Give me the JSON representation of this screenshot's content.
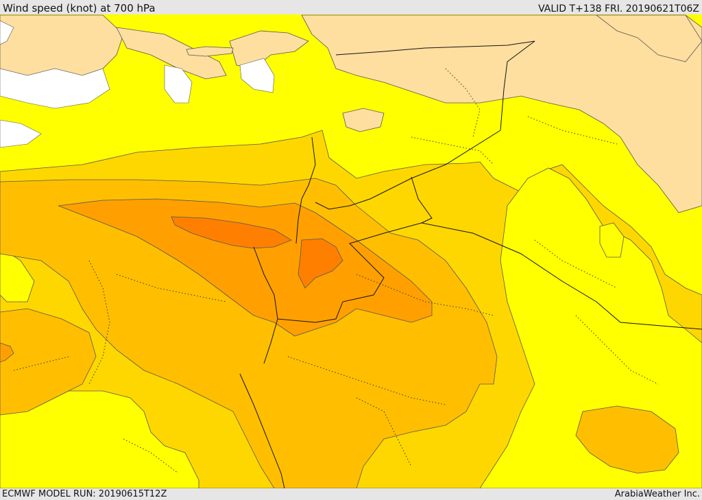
{
  "header": {
    "title": "Wind speed (knot) at 700 hPa",
    "valid": "VALID T+138 FRI. 20190621T06Z"
  },
  "footer": {
    "model_run": "ECMWF MODEL RUN: 20190615T12Z",
    "credit": "ArabiaWeather Inc."
  },
  "map": {
    "palette": {
      "sea_white": "#ffffff",
      "level_1": "#ffdf9f",
      "level_2": "#ffff00",
      "level_3": "#ffd700",
      "level_4": "#ffbf00",
      "level_5": "#ffa000",
      "level_6": "#ff8000",
      "contour_line": "#555555",
      "border_line": "#111111"
    }
  }
}
